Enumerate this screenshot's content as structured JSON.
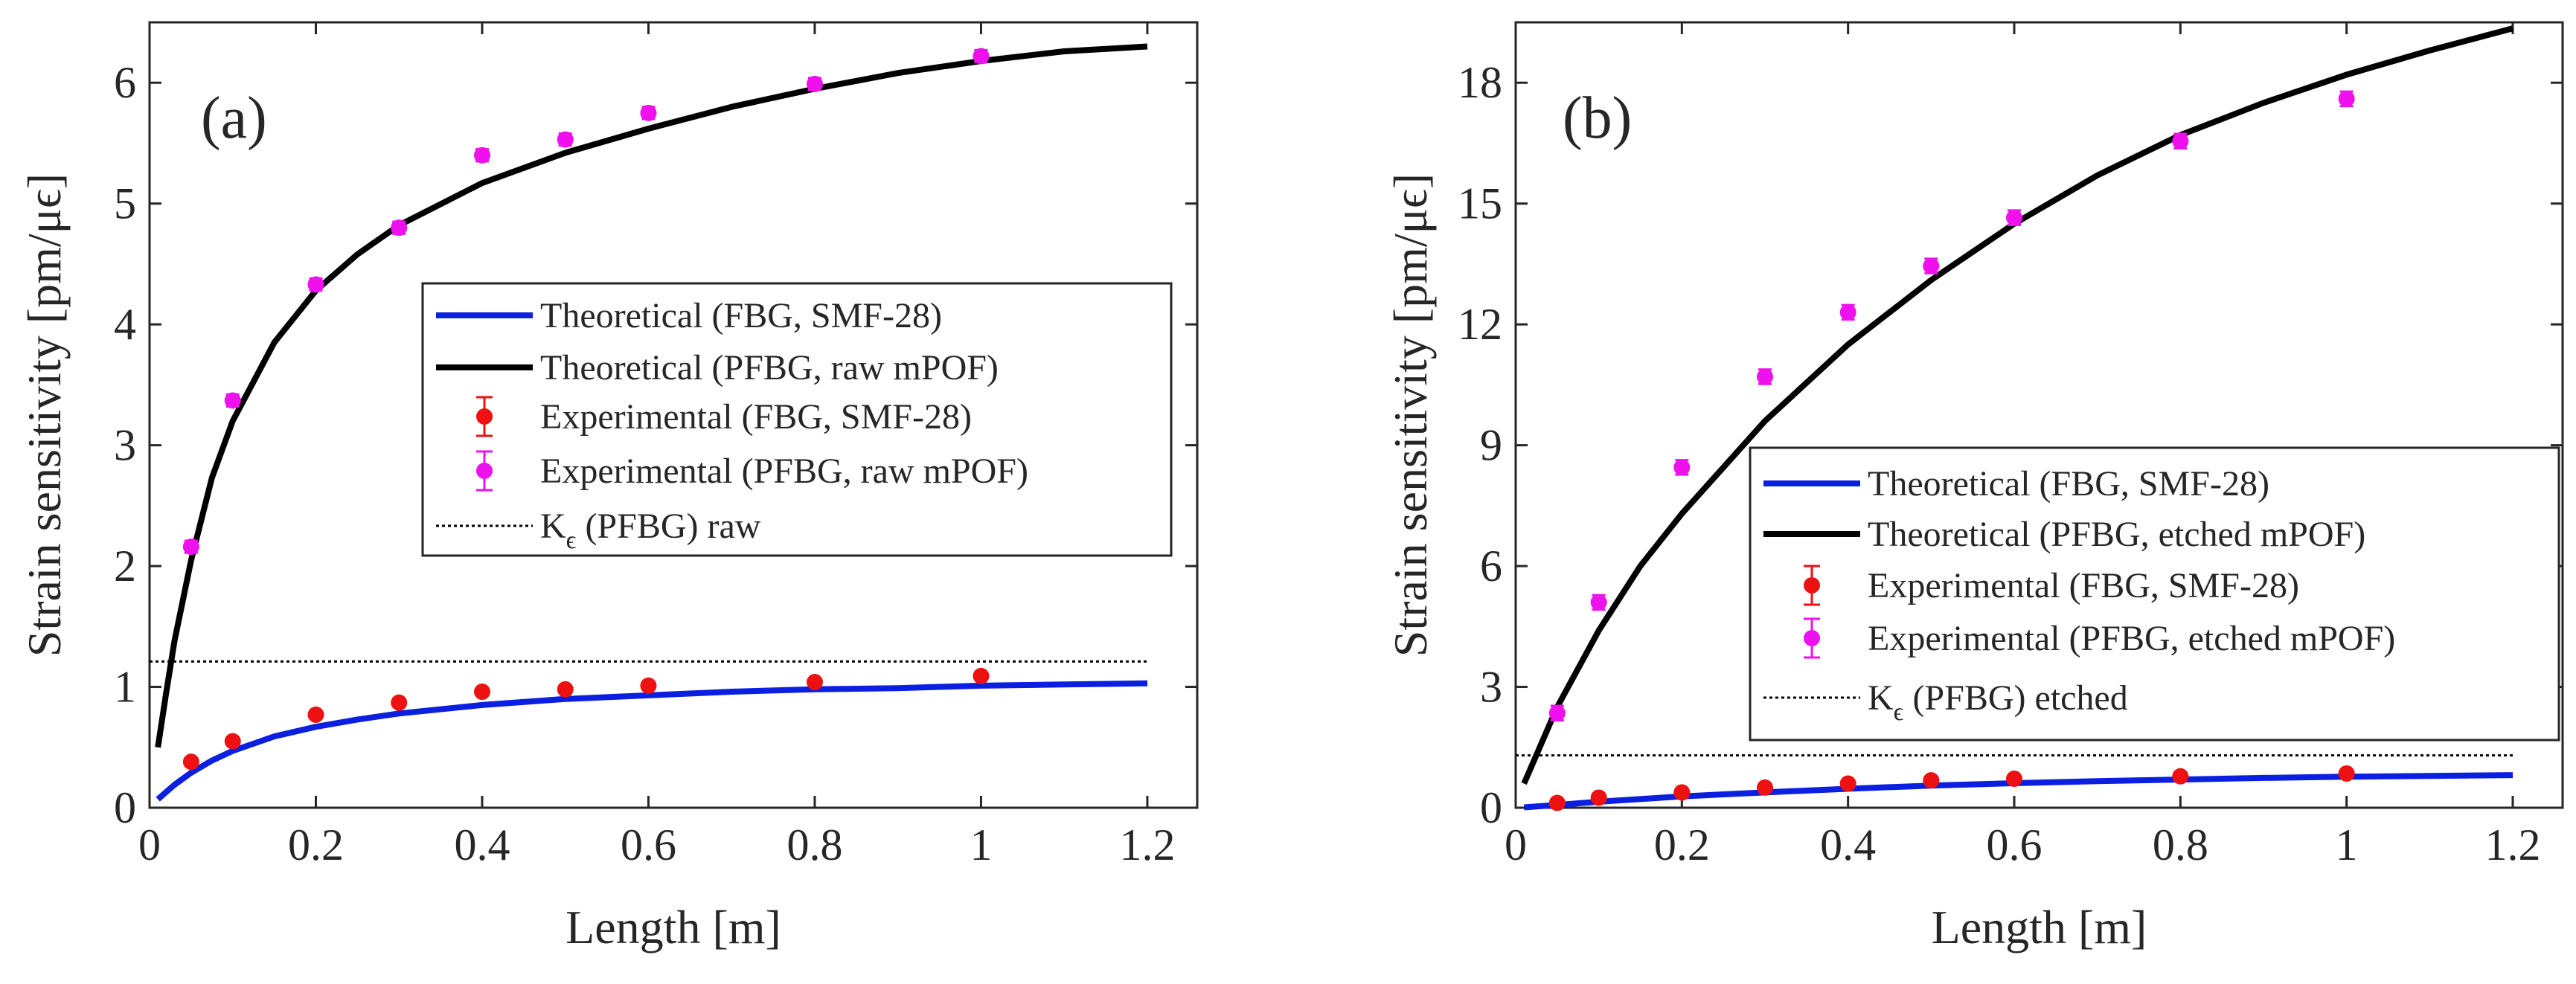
{
  "figure": {
    "ylabel": "Strain sensitivity [pm/μϵ]",
    "xlabel": "Length [m]"
  },
  "chart_data": [
    {
      "panel_label": "(a)",
      "type": "line",
      "xlabel": "Length [m]",
      "ylabel": "Strain sensitivity [pm/μϵ]",
      "xlim": [
        0,
        1.26
      ],
      "ylim": [
        0,
        6.5
      ],
      "xticks": [
        0,
        0.2,
        0.4,
        0.6,
        0.8,
        1,
        1.2
      ],
      "xtick_labels": [
        "0",
        "0.2",
        "0.4",
        "0.6",
        "0.8",
        "1",
        "1.2"
      ],
      "yticks": [
        0,
        1,
        2,
        3,
        4,
        5,
        6
      ],
      "ytick_labels": [
        "0",
        "1",
        "2",
        "3",
        "4",
        "5",
        "6"
      ],
      "legend_position": "center-right",
      "series": [
        {
          "name": "Theoretical (FBG, SMF-28)",
          "kind": "line",
          "color": "#0a1fe0",
          "x": [
            0.01,
            0.02,
            0.03,
            0.05,
            0.075,
            0.1,
            0.15,
            0.2,
            0.25,
            0.3,
            0.4,
            0.5,
            0.6,
            0.7,
            0.8,
            0.9,
            1.0,
            1.1,
            1.2
          ],
          "y": [
            0.07,
            0.13,
            0.19,
            0.29,
            0.39,
            0.47,
            0.59,
            0.67,
            0.73,
            0.78,
            0.85,
            0.9,
            0.93,
            0.96,
            0.98,
            0.99,
            1.01,
            1.02,
            1.03
          ]
        },
        {
          "name": "Theoretical (PFBG, raw mPOF)",
          "kind": "line",
          "color": "#000000",
          "x": [
            0.01,
            0.02,
            0.03,
            0.05,
            0.075,
            0.1,
            0.15,
            0.2,
            0.25,
            0.3,
            0.4,
            0.5,
            0.6,
            0.7,
            0.8,
            0.9,
            1.0,
            1.1,
            1.2
          ],
          "y": [
            0.5,
            0.95,
            1.38,
            2.05,
            2.73,
            3.2,
            3.85,
            4.28,
            4.58,
            4.82,
            5.17,
            5.42,
            5.62,
            5.8,
            5.95,
            6.08,
            6.18,
            6.26,
            6.3
          ]
        },
        {
          "name": "Experimental (FBG, SMF-28)",
          "kind": "errorbar",
          "color": "#ee1111",
          "x": [
            0.05,
            0.1,
            0.2,
            0.3,
            0.4,
            0.5,
            0.6,
            0.8,
            1.0
          ],
          "y": [
            0.38,
            0.55,
            0.77,
            0.87,
            0.96,
            0.98,
            1.01,
            1.04,
            1.09
          ],
          "err": [
            0.03,
            0.03,
            0.03,
            0.03,
            0.03,
            0.03,
            0.03,
            0.03,
            0.03
          ]
        },
        {
          "name": "Experimental (PFBG, raw mPOF)",
          "kind": "errorbar",
          "color": "#ee11ee",
          "x": [
            0.05,
            0.1,
            0.2,
            0.3,
            0.4,
            0.5,
            0.6,
            0.8,
            1.0
          ],
          "y": [
            2.16,
            3.37,
            4.33,
            4.8,
            5.4,
            5.53,
            5.75,
            5.99,
            6.22
          ],
          "err": [
            0.05,
            0.05,
            0.05,
            0.05,
            0.05,
            0.05,
            0.05,
            0.05,
            0.05
          ]
        },
        {
          "name": "K_ϵ (PFBG) raw",
          "legend_main": "K",
          "legend_sub": "ϵ",
          "legend_rest": "(PFBG) raw",
          "kind": "hline",
          "color": "#000000",
          "y": 1.21,
          "x": [
            0,
            1.2
          ]
        }
      ]
    },
    {
      "panel_label": "(b)",
      "type": "line",
      "xlabel": "Length [m]",
      "ylabel": "Strain sensitivity [pm/μϵ]",
      "xlim": [
        0,
        1.26
      ],
      "ylim": [
        0,
        19.5
      ],
      "xticks": [
        0,
        0.2,
        0.4,
        0.6,
        0.8,
        1,
        1.2
      ],
      "xtick_labels": [
        "0",
        "0.2",
        "0.4",
        "0.6",
        "0.8",
        "1",
        "1.2"
      ],
      "yticks": [
        0,
        3,
        6,
        9,
        12,
        15,
        18
      ],
      "ytick_labels": [
        "0",
        "3",
        "6",
        "9",
        "12",
        "15",
        "18"
      ],
      "legend_position": "lower-right",
      "series": [
        {
          "name": "Theoretical (FBG, SMF-28)",
          "kind": "line",
          "color": "#0a1fe0",
          "x": [
            0.01,
            0.05,
            0.1,
            0.2,
            0.3,
            0.4,
            0.5,
            0.6,
            0.7,
            0.8,
            0.9,
            1.0,
            1.1,
            1.2
          ],
          "y": [
            0.01,
            0.07,
            0.15,
            0.28,
            0.38,
            0.47,
            0.55,
            0.61,
            0.66,
            0.7,
            0.74,
            0.77,
            0.79,
            0.81
          ]
        },
        {
          "name": "Theoretical (PFBG, etched mPOF)",
          "kind": "line",
          "color": "#000000",
          "x": [
            0.01,
            0.05,
            0.1,
            0.15,
            0.2,
            0.3,
            0.4,
            0.5,
            0.6,
            0.7,
            0.8,
            0.9,
            1.0,
            1.1,
            1.2
          ],
          "y": [
            0.6,
            2.5,
            4.4,
            6.0,
            7.3,
            9.6,
            11.5,
            13.1,
            14.5,
            15.7,
            16.7,
            17.5,
            18.2,
            18.8,
            19.35
          ]
        },
        {
          "name": "Experimental (FBG, SMF-28)",
          "kind": "errorbar",
          "color": "#ee1111",
          "x": [
            0.05,
            0.1,
            0.2,
            0.3,
            0.4,
            0.5,
            0.6,
            0.8,
            1.0
          ],
          "y": [
            0.12,
            0.25,
            0.38,
            0.5,
            0.6,
            0.68,
            0.72,
            0.78,
            0.85
          ],
          "err": [
            0.08,
            0.08,
            0.08,
            0.08,
            0.08,
            0.08,
            0.08,
            0.08,
            0.08
          ]
        },
        {
          "name": "Experimental (PFBG, etched mPOF)",
          "kind": "errorbar",
          "color": "#ee11ee",
          "x": [
            0.05,
            0.1,
            0.2,
            0.3,
            0.4,
            0.5,
            0.6,
            0.8,
            1.0
          ],
          "y": [
            2.35,
            5.1,
            8.45,
            10.7,
            12.3,
            13.45,
            14.65,
            16.55,
            17.6
          ],
          "err": [
            0.18,
            0.18,
            0.18,
            0.18,
            0.18,
            0.18,
            0.18,
            0.18,
            0.18
          ]
        },
        {
          "name": "K_ϵ (PFBG) etched",
          "legend_main": "K",
          "legend_sub": "ϵ",
          "legend_rest": "(PFBG) etched",
          "kind": "hline",
          "color": "#000000",
          "y": 1.3,
          "x": [
            0,
            1.2
          ]
        }
      ]
    }
  ]
}
